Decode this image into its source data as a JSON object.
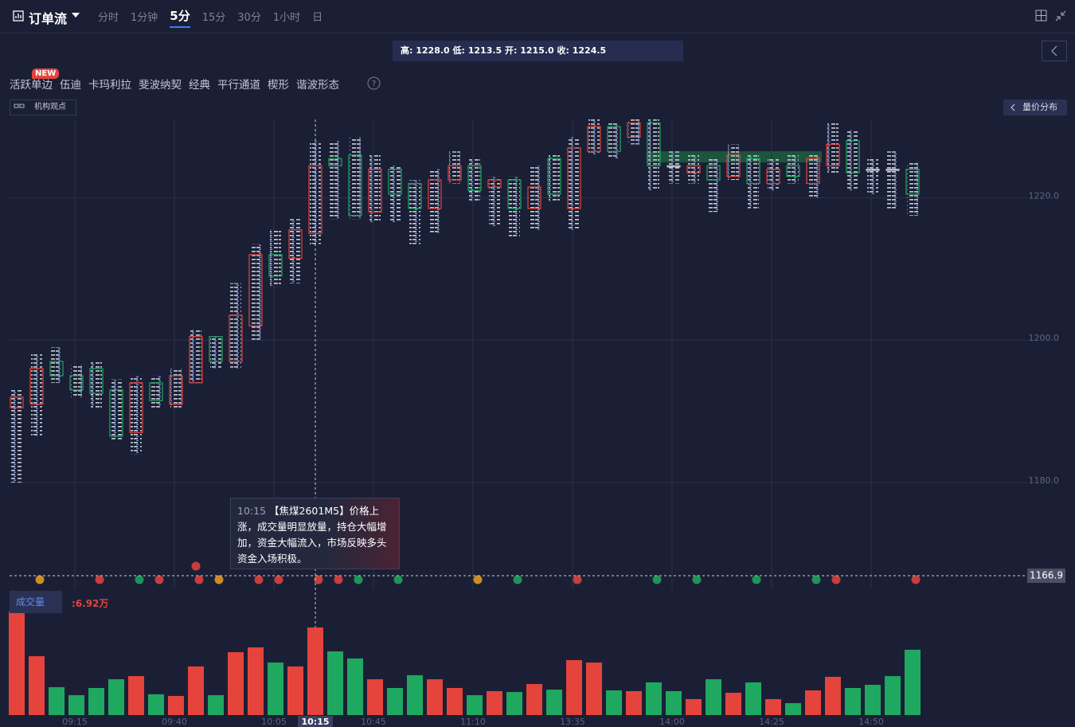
{
  "toolbar": {
    "title": "订单流",
    "tabs": [
      {
        "label": "分时"
      },
      {
        "label": "1分钟"
      },
      {
        "label": "5分",
        "active": true
      },
      {
        "label": "15分"
      },
      {
        "label": "30分"
      },
      {
        "label": "1小时"
      },
      {
        "label": "日"
      }
    ]
  },
  "ohlc_bar": "高: 1228.0 低: 1213.5 开: 1215.0 收: 1224.5",
  "tools": {
    "badge": "NEW",
    "items": [
      "活跃单边",
      "伍迪",
      "卡玛利拉",
      "斐波纳契",
      "经典",
      "平行通道",
      "楔形",
      "谐波形态"
    ]
  },
  "institution_view": "机构观点",
  "volume_profile": "量价分布",
  "volume_selector": "成交量",
  "volume_readout": ":6.92万",
  "tooltip": {
    "time": "10:15",
    "text": "【焦煤2601M5】价格上涨，成交量明显放量，持仓大幅增加，资金大幅流入，市场反映多头资金入场积极。"
  },
  "chart_data": {
    "type": "candlestick",
    "categories": [
      null,
      null,
      null,
      "09:15",
      null,
      null,
      null,
      null,
      "09:40",
      null,
      null,
      null,
      null,
      "10:05",
      null,
      "10:15",
      null,
      null,
      "10:45",
      null,
      null,
      null,
      null,
      "11:10",
      null,
      null,
      null,
      null,
      "13:35",
      null,
      null,
      null,
      null,
      "14:00",
      null,
      null,
      null,
      null,
      "14:25",
      null,
      null,
      null,
      null,
      "14:50",
      null,
      null
    ],
    "open": [
      1190.5,
      1191,
      1197,
      1195,
      1196,
      1193,
      1187,
      1194,
      1191,
      1194,
      1200.5,
      1197,
      1202,
      1212,
      1211.5,
      1215,
      1225.5,
      1226,
      1218,
      1224,
      1222,
      1218.5,
      1222.5,
      1224.5,
      1221.5,
      1222.5,
      1218.5,
      1225.5,
      1218.5,
      1226.5,
      1230,
      1228.5,
      1230.5,
      1224.5,
      1223.5,
      1224.5,
      1223,
      1225.5,
      1222,
      1224.5,
      1222,
      1224.5,
      1228,
      1224,
      1224,
      1224
    ],
    "high": [
      1193,
      1198,
      1199,
      1196.5,
      1197,
      1194.5,
      1195,
      1195,
      1196,
      1201.5,
      1200.5,
      1208,
      1213.5,
      1215.5,
      1217,
      1228,
      1228,
      1228.5,
      1226,
      1224.5,
      1222.5,
      1224,
      1226.5,
      1225.5,
      1223,
      1223,
      1224.5,
      1226,
      1228.5,
      1231,
      1230.5,
      1231,
      1231,
      1226.5,
      1226,
      1225.5,
      1227.5,
      1226,
      1225.5,
      1226,
      1226,
      1230.5,
      1229.5,
      1225.5,
      1226.5,
      1225
    ],
    "low": [
      1180,
      1186.5,
      1194,
      1192,
      1190.5,
      1186,
      1184,
      1190.5,
      1190.5,
      1194,
      1196,
      1196,
      1200,
      1207.5,
      1208,
      1213.5,
      1217,
      1217,
      1216.5,
      1216.5,
      1213.5,
      1215,
      1222,
      1219.5,
      1216,
      1214.5,
      1215.5,
      1219.5,
      1215.5,
      1226,
      1225.5,
      1227.5,
      1221,
      1222,
      1222,
      1218,
      1222.5,
      1218.5,
      1221,
      1222,
      1220,
      1223.5,
      1221,
      1220.5,
      1218.5,
      1217.5
    ],
    "close": [
      1192,
      1196,
      1195,
      1193,
      1192.5,
      1186.5,
      1194,
      1191.5,
      1195,
      1200.5,
      1197,
      1203.5,
      1212,
      1209,
      1215.5,
      1224.5,
      1224.5,
      1217.5,
      1224,
      1220.5,
      1218.5,
      1222.5,
      1224.5,
      1221,
      1222.5,
      1218.5,
      1221.5,
      1220.5,
      1227,
      1230,
      1226.5,
      1230.5,
      1224.5,
      1224.5,
      1224.5,
      1222.5,
      1226,
      1222,
      1224,
      1223,
      1225.5,
      1227.5,
      1223.5,
      1224,
      1224,
      1220.5
    ],
    "volume": [
      8.18,
      4.65,
      2.2,
      1.57,
      2.14,
      2.83,
      3.08,
      1.64,
      1.51,
      3.84,
      1.57,
      4.97,
      5.35,
      4.15,
      3.84,
      6.92,
      5.03,
      4.47,
      2.83,
      2.14,
      3.15,
      2.83,
      2.14,
      1.57,
      1.89,
      1.82,
      2.45,
      2.01,
      4.34,
      4.15,
      1.95,
      1.89,
      2.58,
      1.89,
      1.26,
      2.83,
      1.76,
      2.58,
      1.26,
      0.94,
      1.95,
      3.02,
      2.14,
      2.39,
      3.08,
      5.16
    ],
    "ylim": [
      1165,
      1231
    ],
    "yticks": [
      {
        "value": 1180,
        "label": "1180.0"
      },
      {
        "value": 1200,
        "label": "1200.0"
      },
      {
        "value": 1220,
        "label": "1220.0"
      }
    ],
    "crosshair_price": 1166.9,
    "up_color": "#e5443c",
    "down_color": "#1fa860",
    "grid": true
  }
}
